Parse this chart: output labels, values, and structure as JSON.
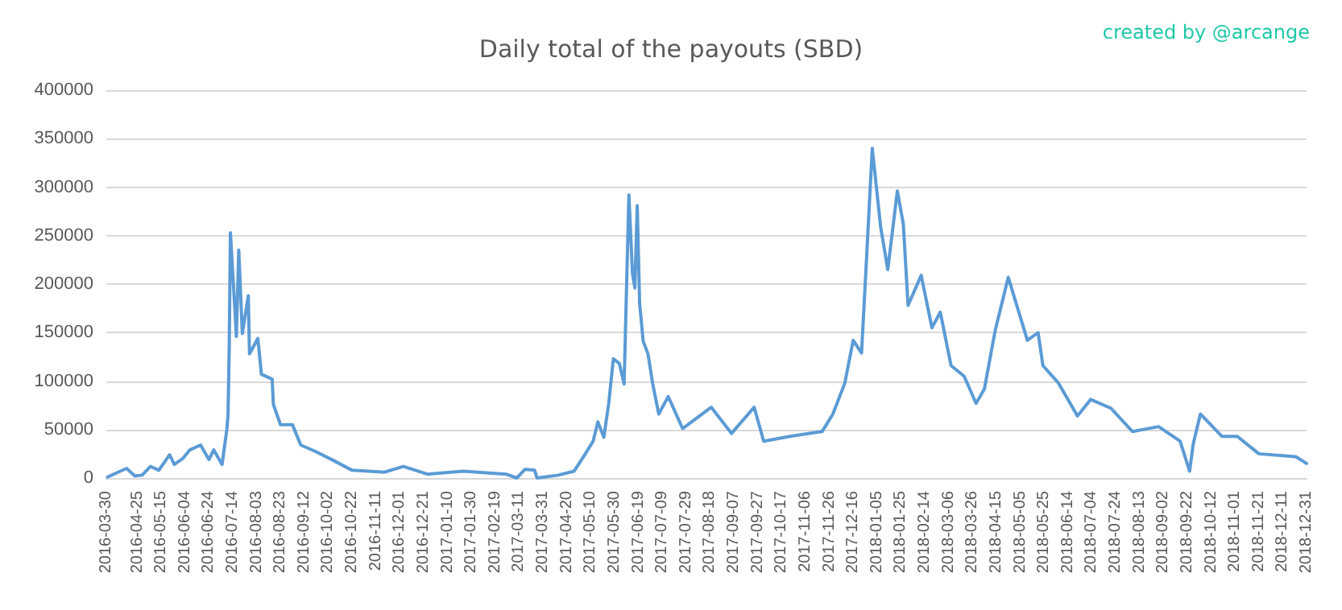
{
  "chart_data": {
    "type": "line",
    "title": "Daily total of the payouts (SBD)",
    "annotations": [
      "created by @arcange"
    ],
    "x": [
      "2016-03-31",
      "2016-04-16",
      "2016-04-23",
      "2016-04-29",
      "2016-05-06",
      "2016-05-13",
      "2016-05-22",
      "2016-05-26",
      "2016-06-02",
      "2016-06-08",
      "2016-06-17",
      "2016-06-24",
      "2016-06-28",
      "2016-07-05",
      "2016-07-09",
      "2016-07-10",
      "2016-07-11",
      "2016-07-12",
      "2016-07-14",
      "2016-07-17",
      "2016-07-19",
      "2016-07-22",
      "2016-07-27",
      "2016-07-28",
      "2016-08-04",
      "2016-08-07",
      "2016-08-16",
      "2016-08-17",
      "2016-08-23",
      "2016-09-02",
      "2016-09-09",
      "2016-09-22",
      "2016-10-05",
      "2016-10-22",
      "2016-11-18",
      "2016-12-04",
      "2016-12-24",
      "2017-01-23",
      "2017-02-28",
      "2017-03-09",
      "2017-03-16",
      "2017-03-24",
      "2017-03-26",
      "2017-04-13",
      "2017-04-26",
      "2017-05-05",
      "2017-05-12",
      "2017-05-16",
      "2017-05-21",
      "2017-05-25",
      "2017-05-29",
      "2017-06-03",
      "2017-06-07",
      "2017-06-11",
      "2017-06-14",
      "2017-06-16",
      "2017-06-18",
      "2017-06-20",
      "2017-06-23",
      "2017-06-27",
      "2017-07-01",
      "2017-07-06",
      "2017-07-14",
      "2017-07-26",
      "2017-08-19",
      "2017-09-05",
      "2017-09-24",
      "2017-10-02",
      "2017-10-24",
      "2017-11-20",
      "2017-11-29",
      "2017-12-09",
      "2017-12-16",
      "2017-12-23",
      "2017-12-27",
      "2018-01-01",
      "2018-01-08",
      "2018-01-14",
      "2018-01-22",
      "2018-01-27",
      "2018-01-31",
      "2018-02-11",
      "2018-02-20",
      "2018-02-27",
      "2018-03-08",
      "2018-03-19",
      "2018-03-29",
      "2018-04-05",
      "2018-04-14",
      "2018-04-25",
      "2018-05-11",
      "2018-05-20",
      "2018-05-24",
      "2018-06-06",
      "2018-06-22",
      "2018-07-03",
      "2018-07-20",
      "2018-08-07",
      "2018-08-29",
      "2018-09-16",
      "2018-09-24",
      "2018-09-27",
      "2018-10-03",
      "2018-10-21",
      "2018-11-03",
      "2018-11-21",
      "2018-12-22",
      "2018-12-31"
    ],
    "series": [
      {
        "color": "#5b9bd5",
        "values": [
          1000,
          10000,
          2000,
          3000,
          12000,
          8000,
          24000,
          14000,
          20000,
          29000,
          34000,
          19000,
          29000,
          14000,
          50000,
          65000,
          133000,
          253000,
          211000,
          146000,
          235000,
          149000,
          188000,
          128000,
          144000,
          107000,
          102000,
          76000,
          55000,
          55000,
          34000,
          27000,
          19000,
          8000,
          6000,
          12000,
          4000,
          7000,
          4000,
          0,
          9000,
          8000,
          0,
          3000,
          7000,
          24000,
          38000,
          58000,
          42000,
          76000,
          123000,
          118000,
          97000,
          292000,
          211000,
          196000,
          281000,
          180000,
          141000,
          128000,
          97000,
          66000,
          84000,
          51000,
          73000,
          46000,
          73000,
          38000,
          43000,
          48000,
          66000,
          98000,
          142000,
          129000,
          222000,
          340000,
          259000,
          215000,
          296000,
          262000,
          178000,
          209000,
          155000,
          171000,
          116000,
          105000,
          77000,
          92000,
          152000,
          207000,
          142000,
          150000,
          116000,
          98000,
          64000,
          81000,
          72000,
          48000,
          53000,
          38000,
          7000,
          35000,
          66000,
          43000,
          43000,
          25000,
          22000,
          15000
        ]
      }
    ],
    "xlim": [
      "2016-03-30",
      "2018-12-31"
    ],
    "xticks": [
      "2016-03-30",
      "2016-04-25",
      "2016-05-15",
      "2016-06-04",
      "2016-06-24",
      "2016-07-14",
      "2016-08-03",
      "2016-08-23",
      "2016-09-12",
      "2016-10-02",
      "2016-10-22",
      "2016-11-11",
      "2016-12-01",
      "2016-12-21",
      "2017-01-10",
      "2017-01-30",
      "2017-02-19",
      "2017-03-11",
      "2017-03-31",
      "2017-04-20",
      "2017-05-10",
      "2017-05-30",
      "2017-06-19",
      "2017-07-09",
      "2017-07-29",
      "2017-08-18",
      "2017-09-07",
      "2017-09-27",
      "2017-10-17",
      "2017-11-06",
      "2017-11-26",
      "2017-12-16",
      "2018-01-05",
      "2018-01-25",
      "2018-02-14",
      "2018-03-06",
      "2018-03-26",
      "2018-04-15",
      "2018-05-05",
      "2018-05-25",
      "2018-06-14",
      "2018-07-04",
      "2018-07-24",
      "2018-08-13",
      "2018-09-02",
      "2018-09-22",
      "2018-10-12",
      "2018-11-01",
      "2018-11-21",
      "2018-12-11",
      "2018-12-31"
    ],
    "ylim": [
      0,
      400000
    ],
    "yticks": [
      0,
      50000,
      100000,
      150000,
      200000,
      250000,
      300000,
      350000,
      400000
    ],
    "grid": "y",
    "marker": "none",
    "line_style": "solid"
  }
}
